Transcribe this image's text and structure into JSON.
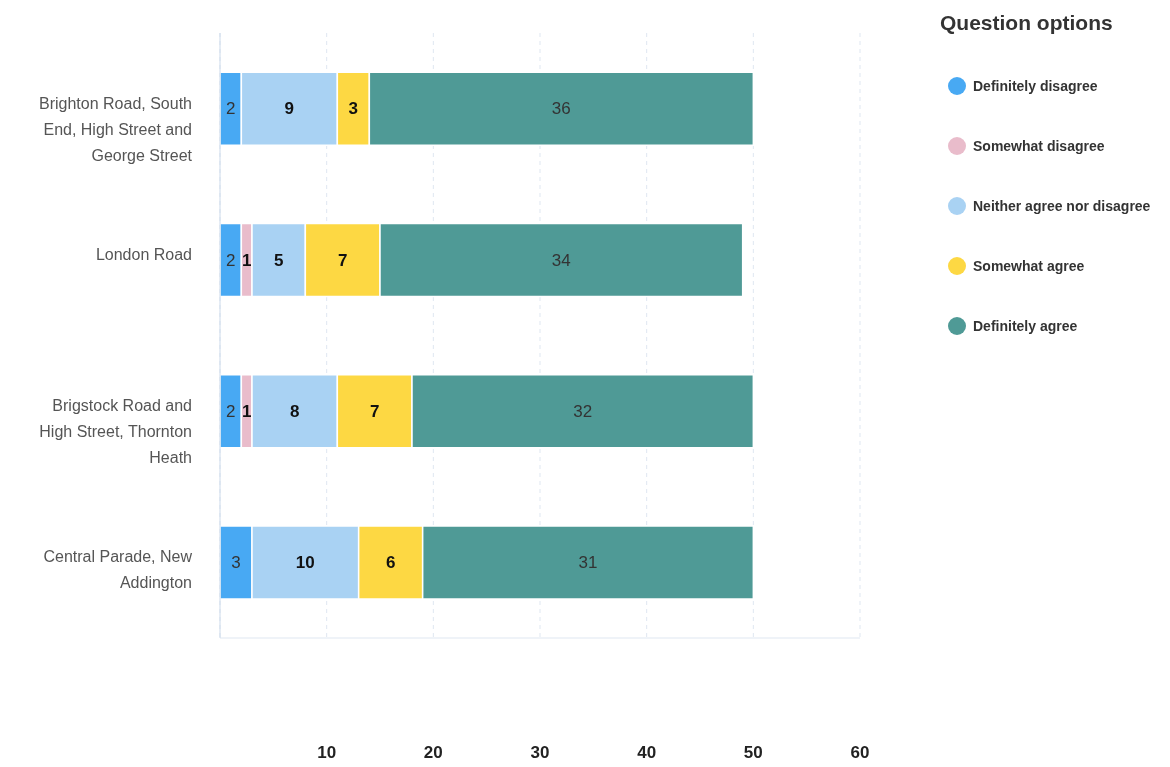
{
  "chart_data": {
    "type": "bar",
    "orientation": "horizontal",
    "stacked": true,
    "categories": [
      "Brighton Road, South End, High Street and George Street",
      "London Road",
      "Brigstock Road and High Street, Thornton Heath",
      "Central Parade, New Addington"
    ],
    "legend_title": "Question options",
    "series": [
      {
        "name": "Definitely disagree",
        "color": "#48a9f3",
        "values": [
          2,
          2,
          2,
          3
        ]
      },
      {
        "name": "Somewhat disagree",
        "color": "#e9bccb",
        "values": [
          null,
          1,
          1,
          null
        ]
      },
      {
        "name": "Neither agree nor disagree",
        "color": "#a9d2f3",
        "values": [
          9,
          5,
          8,
          10
        ]
      },
      {
        "name": "Somewhat agree",
        "color": "#fdd843",
        "values": [
          3,
          7,
          7,
          6
        ]
      },
      {
        "name": "Definitely agree",
        "color": "#4f9a96",
        "values": [
          36,
          34,
          32,
          31
        ]
      }
    ],
    "xlim": [
      0,
      60
    ],
    "xticks": [
      {
        "value": 0,
        "label": null
      },
      10,
      20,
      30,
      40,
      50,
      60
    ],
    "grid": "x",
    "legend": "top right",
    "data_labels": true
  }
}
